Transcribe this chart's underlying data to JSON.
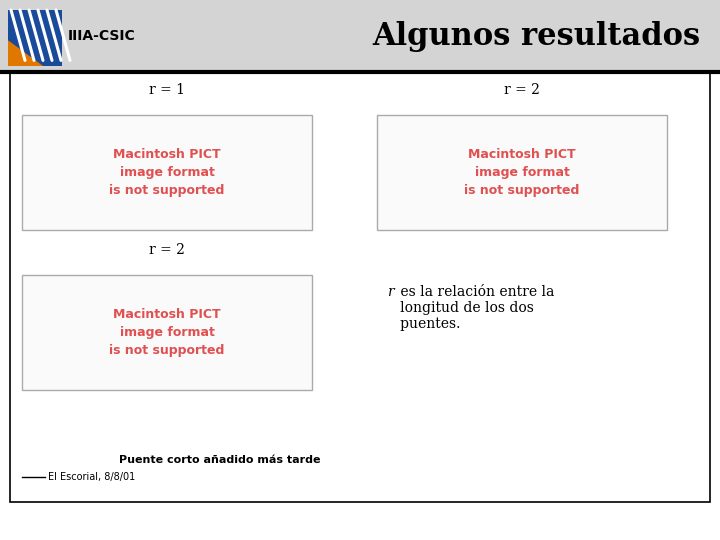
{
  "title": "Algunos resultados",
  "logo_text": "IIIA-CSIC",
  "bg_color": "#ffffff",
  "header_bg": "#d4d4d4",
  "border_color": "#000000",
  "label_r1": "r = 1",
  "label_r2_top": "r = 2",
  "label_r2_bottom": "r = 2",
  "pict_color": "#e05050",
  "pict_text": "Macintosh PICT\nimage format\nis not supported",
  "desc_r_italic": "r",
  "desc_rest_line1": " es la relación entre la",
  "desc_line2": "   longitud de los dos",
  "desc_line3": "   puentes.",
  "footnote_line1": "Puente corto añadido más tarde",
  "footnote_line2": "El Escorial, 8/8/01",
  "logo_blue": "#1a4a9a",
  "logo_orange": "#e07800",
  "title_fontsize": 22,
  "label_fontsize": 10,
  "pict_fontsize": 9,
  "desc_fontsize": 10,
  "footnote1_fontsize": 8,
  "footnote2_fontsize": 7
}
